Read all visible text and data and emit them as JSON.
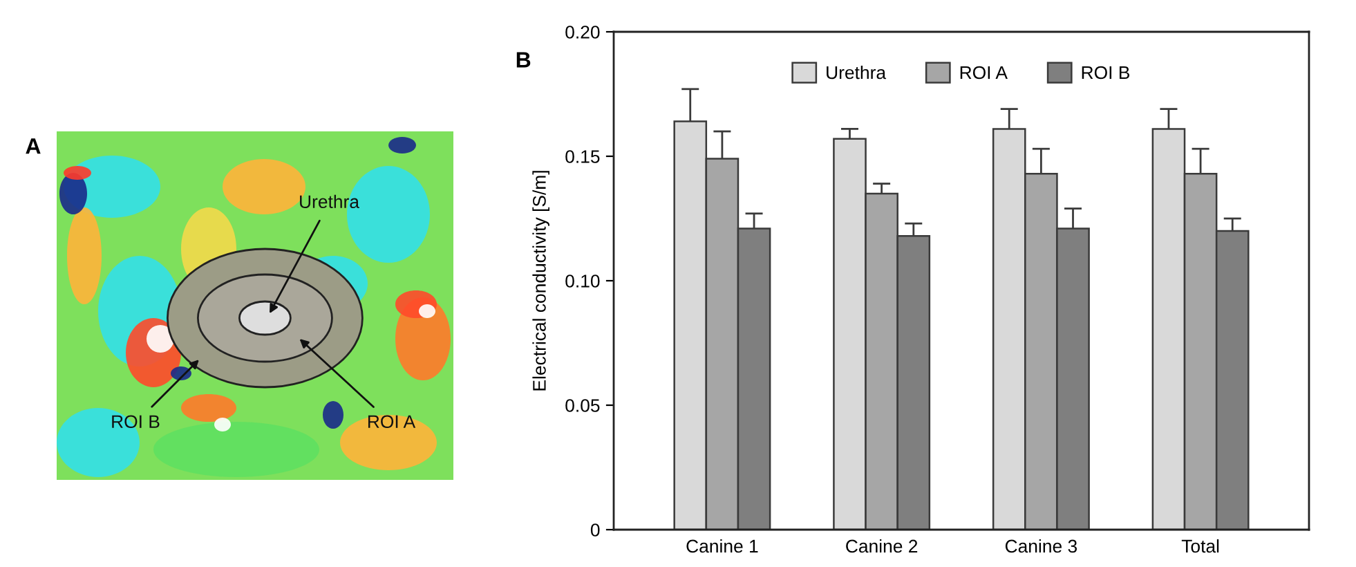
{
  "chart_data": [
    {
      "type": "other",
      "title": "A",
      "annotations": [
        "Urethra",
        "ROI A",
        "ROI B"
      ]
    },
    {
      "type": "bar",
      "title": "B",
      "ylabel": "Electrical conductivity [S/m]",
      "categories": [
        "Canine 1",
        "Canine 2",
        "Canine 3",
        "Total"
      ],
      "series": [
        {
          "name": "Urethra",
          "color": "#d9d9d9",
          "values": [
            0.164,
            0.157,
            0.161,
            0.161
          ],
          "errors": [
            [
              0.164,
              0.177
            ],
            [
              0.157,
              0.161
            ],
            [
              0.161,
              0.169
            ],
            [
              0.161,
              0.169
            ]
          ]
        },
        {
          "name": "ROI A",
          "color": "#a6a6a6",
          "values": [
            0.149,
            0.135,
            0.143,
            0.143
          ],
          "errors": [
            [
              0.149,
              0.16
            ],
            [
              0.135,
              0.139
            ],
            [
              0.143,
              0.153
            ],
            [
              0.143,
              0.153
            ]
          ]
        },
        {
          "name": "ROI B",
          "color": "#7f7f7f",
          "values": [
            0.121,
            0.118,
            0.121,
            0.12
          ],
          "errors": [
            [
              0.121,
              0.127
            ],
            [
              0.118,
              0.123
            ],
            [
              0.121,
              0.129
            ],
            [
              0.12,
              0.125
            ]
          ]
        }
      ],
      "ylim": [
        0,
        0.2
      ],
      "yticks": [
        0,
        0.05,
        {
          "value": 0.1,
          "label": "0.10"
        },
        0.15,
        {
          "value": 0.2,
          "label": "0.20"
        }
      ],
      "legend": "top"
    }
  ]
}
